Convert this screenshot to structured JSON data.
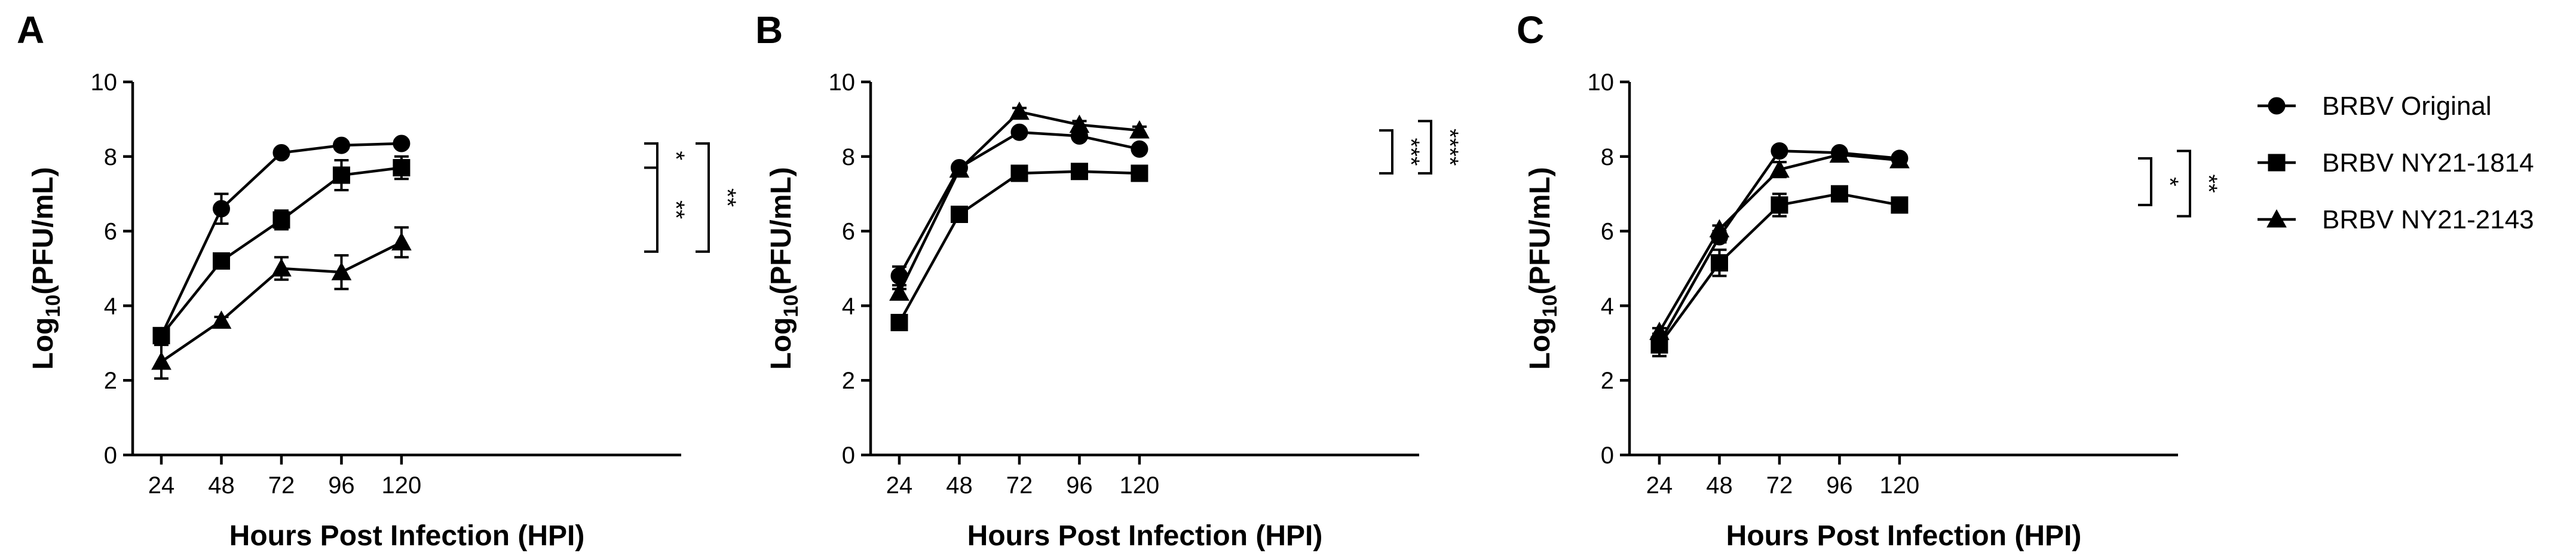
{
  "chart_data": [
    {
      "panel_label": "A",
      "type": "line",
      "xlabel": "Hours Post Infection (HPI)",
      "ylabel": "Log",
      "ylabel_sub": "10",
      "ylabel_suffix": "(PFU/mL)",
      "x": [
        24,
        48,
        72,
        96,
        120
      ],
      "x_ticks": [
        "24",
        "48",
        "72",
        "96",
        "120"
      ],
      "ylim": [
        0,
        10
      ],
      "y_ticks": [
        "0",
        "2",
        "4",
        "6",
        "8",
        "10"
      ],
      "series": [
        {
          "name": "BRBV Original",
          "marker": "circle",
          "values": [
            3.2,
            6.6,
            8.1,
            8.3,
            8.35
          ],
          "errors": [
            0.15,
            0.4,
            0.1,
            0.1,
            0.1
          ]
        },
        {
          "name": "BRBV NY21-1814",
          "marker": "square",
          "values": [
            3.2,
            5.2,
            6.3,
            7.5,
            7.7
          ],
          "errors": [
            0.15,
            0.15,
            0.25,
            0.4,
            0.3
          ]
        },
        {
          "name": "BRBV NY21-2143",
          "marker": "triangle",
          "values": [
            2.5,
            3.6,
            5.0,
            4.9,
            5.7
          ],
          "errors": [
            0.45,
            0.1,
            0.3,
            0.45,
            0.4
          ]
        }
      ],
      "significance": [
        {
          "from": 8.35,
          "to": 7.7,
          "level": 0,
          "label": "*"
        },
        {
          "from": 7.7,
          "to": 5.45,
          "level": 0,
          "label": "**"
        },
        {
          "from": 8.35,
          "to": 5.45,
          "level": 1,
          "label": "**"
        }
      ]
    },
    {
      "panel_label": "B",
      "type": "line",
      "xlabel": "Hours Post Infection (HPI)",
      "ylabel": "Log",
      "ylabel_sub": "10",
      "ylabel_suffix": "(PFU/mL)",
      "x": [
        24,
        48,
        72,
        96,
        120
      ],
      "x_ticks": [
        "24",
        "48",
        "72",
        "96",
        "120"
      ],
      "ylim": [
        0,
        10
      ],
      "y_ticks": [
        "0",
        "2",
        "4",
        "6",
        "8",
        "10"
      ],
      "series": [
        {
          "name": "BRBV Original",
          "marker": "circle",
          "values": [
            4.8,
            7.7,
            8.65,
            8.55,
            8.2
          ],
          "errors": [
            0.25,
            0.1,
            0.1,
            0.1,
            0.1
          ]
        },
        {
          "name": "BRBV NY21-1814",
          "marker": "square",
          "values": [
            3.55,
            6.45,
            7.55,
            7.6,
            7.55
          ],
          "errors": [
            0.1,
            0.1,
            0.1,
            0.1,
            0.1
          ]
        },
        {
          "name": "BRBV NY21-2143",
          "marker": "triangle",
          "values": [
            4.35,
            7.65,
            9.2,
            8.85,
            8.7
          ],
          "errors": [
            0.1,
            0.1,
            0.1,
            0.1,
            0.1
          ]
        }
      ],
      "significance": [
        {
          "from": 8.7,
          "to": 7.55,
          "level": 0,
          "label": "***"
        },
        {
          "from": 8.95,
          "to": 7.55,
          "level": 1,
          "label": "****"
        }
      ]
    },
    {
      "panel_label": "C",
      "type": "line",
      "xlabel": "Hours Post Infection (HPI)",
      "ylabel": "Log",
      "ylabel_sub": "10",
      "ylabel_suffix": "(PFU/mL)",
      "x": [
        24,
        48,
        72,
        96,
        120
      ],
      "x_ticks": [
        "24",
        "48",
        "72",
        "96",
        "120"
      ],
      "ylim": [
        0,
        10
      ],
      "y_ticks": [
        "0",
        "2",
        "4",
        "6",
        "8",
        "10"
      ],
      "series": [
        {
          "name": "BRBV Original",
          "marker": "circle",
          "values": [
            3.0,
            5.85,
            8.15,
            8.1,
            7.95
          ],
          "errors": [
            0.2,
            0.15,
            0.1,
            0.1,
            0.1
          ]
        },
        {
          "name": "BRBV NY21-1814",
          "marker": "square",
          "values": [
            2.95,
            5.15,
            6.7,
            7.0,
            6.7
          ],
          "errors": [
            0.3,
            0.35,
            0.3,
            0.1,
            0.1
          ]
        },
        {
          "name": "BRBV NY21-2143",
          "marker": "triangle",
          "values": [
            3.3,
            6.05,
            7.65,
            8.05,
            7.9
          ],
          "errors": [
            0.1,
            0.1,
            0.2,
            0.1,
            0.1
          ]
        }
      ],
      "significance": [
        {
          "from": 7.95,
          "to": 6.7,
          "level": 0,
          "label": "*"
        },
        {
          "from": 8.15,
          "to": 6.4,
          "level": 1,
          "label": "**"
        }
      ]
    }
  ],
  "legend": [
    {
      "name": "BRBV Original",
      "marker": "circle"
    },
    {
      "name": "BRBV NY21-1814",
      "marker": "square"
    },
    {
      "name": "BRBV NY21-2143",
      "marker": "triangle"
    }
  ]
}
